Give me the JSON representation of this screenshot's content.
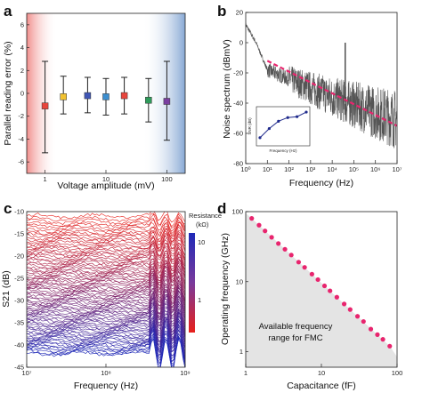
{
  "chart_data": [
    {
      "panel": "a",
      "type": "scatter",
      "xlabel": "Voltage amplitude (mV)",
      "ylabel": "Parallel reading error (%)",
      "xscale": "log",
      "xlim": [
        0.5,
        200
      ],
      "ylim": [
        -7,
        7
      ],
      "xticks": [
        "1",
        "10",
        "100"
      ],
      "yticks": [
        "6",
        "4",
        "2",
        "0",
        "-2",
        "-4",
        "-6"
      ],
      "points": [
        {
          "x": 1,
          "y": -1.1,
          "low": -5.2,
          "high": 2.8,
          "color": "#e8453c"
        },
        {
          "x": 2,
          "y": -0.3,
          "low": -1.8,
          "high": 1.5,
          "color": "#f2c230"
        },
        {
          "x": 5,
          "y": -0.2,
          "low": -1.7,
          "high": 1.4,
          "color": "#3f55b5"
        },
        {
          "x": 10,
          "y": -0.3,
          "low": -1.9,
          "high": 1.3,
          "color": "#3d8fd0"
        },
        {
          "x": 20,
          "y": -0.2,
          "low": -1.8,
          "high": 1.4,
          "color": "#e8453c"
        },
        {
          "x": 50,
          "y": -0.6,
          "low": -2.5,
          "high": 1.3,
          "color": "#2e9a5a"
        },
        {
          "x": 100,
          "y": -0.7,
          "low": -4.1,
          "high": 2.8,
          "color": "#7a3fa0"
        }
      ]
    },
    {
      "panel": "b",
      "type": "line",
      "xlabel": "Frequency (Hz)",
      "ylabel": "Noise spectrum (dBmV)",
      "xscale": "log",
      "xlim": [
        1,
        10000000
      ],
      "ylim": [
        -80,
        20
      ],
      "xticks": [
        "10⁰",
        "10¹",
        "10²",
        "10³",
        "10⁴",
        "10⁵",
        "10⁶",
        "10⁷"
      ],
      "yticks": [
        "20",
        "0",
        "-20",
        "-40",
        "-60",
        "-80"
      ],
      "spectrum_trend": {
        "x": [
          1,
          3,
          10,
          100,
          1000,
          10000,
          100000,
          1000000,
          10000000
        ],
        "y": [
          12,
          0,
          -18,
          -24,
          -30,
          -36,
          -41,
          -46,
          -51
        ]
      },
      "spike": {
        "x": 40000,
        "y": 0
      },
      "fit_line": {
        "x": [
          10,
          10000000
        ],
        "y": [
          -12,
          -55
        ]
      },
      "inset": {
        "ylabel": "SNR (dB)",
        "xlabel": "Frequency (Hz)",
        "points": [
          {
            "x": 1,
            "y": 20
          },
          {
            "x": 10,
            "y": 30
          },
          {
            "x": 100,
            "y": 38
          },
          {
            "x": 1000,
            "y": 42
          },
          {
            "x": 10000,
            "y": 43
          },
          {
            "x": 100000,
            "y": 48
          }
        ]
      }
    },
    {
      "panel": "c",
      "type": "line",
      "xlabel": "Frequency (Hz)",
      "ylabel": "S21 (dB)",
      "xscale": "log",
      "xlim": [
        10000000,
        1000000000
      ],
      "ylim": [
        -45,
        -10
      ],
      "xticks": [
        "10⁷",
        "10⁸",
        "10⁹"
      ],
      "yticks": [
        "-10",
        "-15",
        "-20",
        "-25",
        "-30",
        "-35",
        "-40",
        "-45"
      ],
      "traces": {
        "count": 90,
        "top_level_dB": -11,
        "bottom_level_dB": -42
      },
      "colorbar": {
        "title": "Resistance",
        "unit": "(kΩ)",
        "ticks": [
          "10",
          "1"
        ],
        "low_color": "#e8201a",
        "high_color": "#1f2ab8"
      }
    },
    {
      "panel": "d",
      "type": "scatter",
      "xlabel": "Capacitance (fF)",
      "ylabel": "Operating frequency (GHz)",
      "xscale": "log",
      "yscale": "log",
      "xlim": [
        1,
        100
      ],
      "ylim": [
        0.6,
        100
      ],
      "xticks": [
        "1",
        "10",
        "100"
      ],
      "yticks": [
        "100",
        "10",
        "1"
      ],
      "points_color": "#e8256e",
      "points": [
        {
          "x": 1.2,
          "y": 80
        },
        {
          "x": 1.5,
          "y": 64
        },
        {
          "x": 1.8,
          "y": 53
        },
        {
          "x": 2.2,
          "y": 43
        },
        {
          "x": 2.7,
          "y": 35
        },
        {
          "x": 3.3,
          "y": 29
        },
        {
          "x": 4,
          "y": 24
        },
        {
          "x": 5,
          "y": 19
        },
        {
          "x": 6,
          "y": 16
        },
        {
          "x": 7.5,
          "y": 12.8
        },
        {
          "x": 9,
          "y": 10.7
        },
        {
          "x": 11,
          "y": 8.7
        },
        {
          "x": 13,
          "y": 7.4
        },
        {
          "x": 16,
          "y": 6
        },
        {
          "x": 20,
          "y": 4.8
        },
        {
          "x": 24,
          "y": 4
        },
        {
          "x": 30,
          "y": 3.2
        },
        {
          "x": 36,
          "y": 2.7
        },
        {
          "x": 45,
          "y": 2.1
        },
        {
          "x": 55,
          "y": 1.75
        },
        {
          "x": 65,
          "y": 1.5
        },
        {
          "x": 80,
          "y": 1.2
        }
      ],
      "shaded_region_label": [
        "Available frequency",
        "range for FMC"
      ]
    }
  ]
}
